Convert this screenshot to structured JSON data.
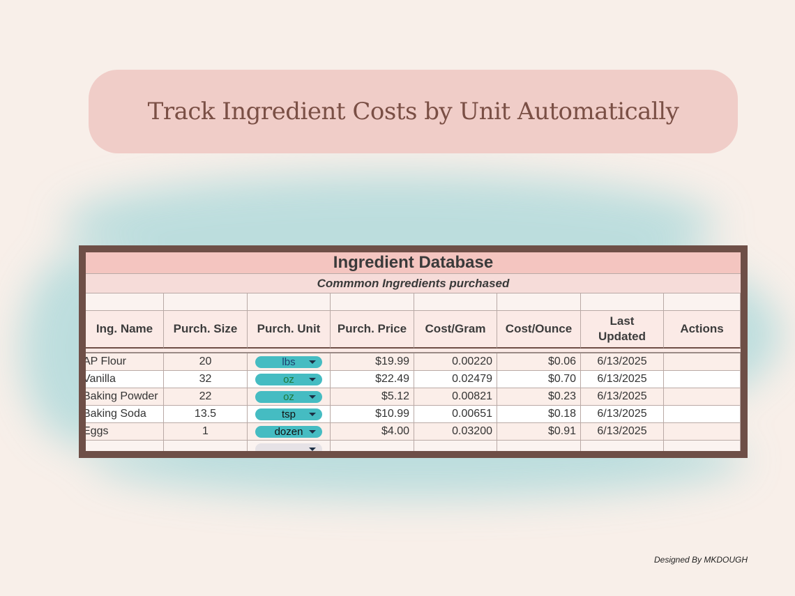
{
  "banner": {
    "title": "Track Ingredient Costs by Unit Automatically"
  },
  "sheet": {
    "title": "Ingredient Database",
    "subtitle": "Commmon Ingredients purchased",
    "headers": [
      "Ing. Name",
      "Purch. Size",
      "Purch. Unit",
      "Purch. Price",
      "Cost/Gram",
      "Cost/Ounce",
      "Last Updated",
      "Actions"
    ],
    "rows": [
      [
        "AP Flour",
        "20",
        "lbs",
        "$19.99",
        "0.00220",
        "$0.06",
        "6/13/2025"
      ],
      [
        "Vanilla",
        "32",
        "oz",
        "$22.49",
        "0.02479",
        "$0.70",
        "6/13/2025"
      ],
      [
        "Baking Powder",
        "22",
        "oz",
        "$5.12",
        "0.00821",
        "$0.23",
        "6/13/2025"
      ],
      [
        "Baking Soda",
        "13.5",
        "tsp",
        "$10.99",
        "0.00651",
        "$0.18",
        "6/13/2025"
      ],
      [
        "Eggs",
        "1",
        "dozen",
        "$4.00",
        "0.03200",
        "$0.91",
        "6/13/2025"
      ]
    ]
  },
  "footer": "Designed By MKDOUGH"
}
